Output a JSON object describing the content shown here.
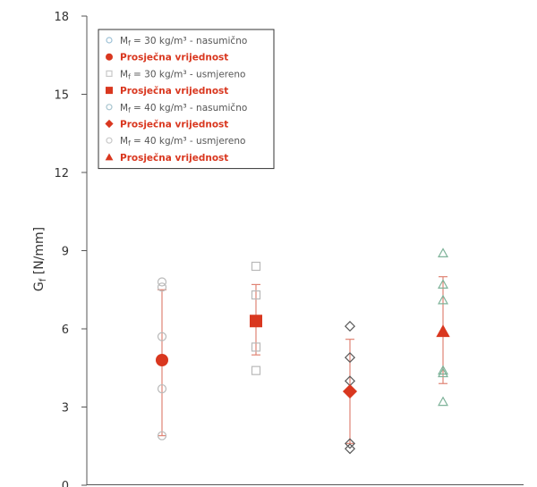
{
  "chart_data": {
    "type": "scatter",
    "title": "",
    "xlabel": "",
    "ylabel": "G",
    "ylabel_sub": "f",
    "ylabel_unit": " [N/mm]",
    "ylim": [
      0,
      18
    ],
    "yticks": [
      0,
      3,
      6,
      9,
      12,
      15,
      18
    ],
    "grid": false,
    "legend_position": "top-left",
    "groups": [
      {
        "x": 1,
        "marker": "circle",
        "raw": [
          7.8,
          7.6,
          5.7,
          3.7,
          1.9
        ],
        "mean": 4.8,
        "err_low": 1.9,
        "err_high": 7.5,
        "raw_color": "#b9b9b9",
        "mean_color": "#d9371f"
      },
      {
        "x": 2,
        "marker": "square",
        "raw": [
          8.4,
          7.3,
          5.3,
          4.4
        ],
        "mean": 6.3,
        "err_low": 5.0,
        "err_high": 7.7,
        "raw_color": "#b9b9b9",
        "mean_color": "#d9371f"
      },
      {
        "x": 3,
        "marker": "diamond",
        "raw": [
          6.1,
          4.9,
          4.0,
          1.6,
          1.4
        ],
        "mean": 3.6,
        "err_low": 1.6,
        "err_high": 5.6,
        "raw_color": "#5a5a5a",
        "mean_color": "#d9371f"
      },
      {
        "x": 4,
        "marker": "triangle",
        "raw": [
          8.9,
          7.7,
          7.1,
          4.4,
          4.3,
          3.2
        ],
        "mean": 5.9,
        "err_low": 3.9,
        "err_high": 8.0,
        "raw_color": "#7fb39a",
        "mean_color": "#d9371f"
      }
    ],
    "legend": [
      {
        "marker": "circle",
        "style": "raw",
        "color": "#9fc2d7",
        "pre": "M",
        "sub": "f",
        "post": " = 30 kg/m³ - nasumično"
      },
      {
        "marker": "circle",
        "style": "mean",
        "color": "#d9371f",
        "text": "Prosječna vrijednost"
      },
      {
        "marker": "square",
        "style": "raw",
        "color": "#c9c9c9",
        "pre": "M",
        "sub": "f",
        "post": " = 30 kg/m³ - usmjereno"
      },
      {
        "marker": "square",
        "style": "mean",
        "color": "#d9371f",
        "text": "Prosječna vrijednost"
      },
      {
        "marker": "circle",
        "style": "raw",
        "color": "#a8c5cf",
        "pre": "M",
        "sub": "f",
        "post": " = 40 kg/m³ - nasumično"
      },
      {
        "marker": "diamond",
        "style": "mean",
        "color": "#d9371f",
        "text": "Prosječna vrijednost"
      },
      {
        "marker": "circle",
        "style": "raw",
        "color": "#c9c9c9",
        "pre": "M",
        "sub": "f",
        "post": " = 40 kg/m³ - usmjereno"
      },
      {
        "marker": "triangle",
        "style": "mean",
        "color": "#d9371f",
        "text": "Prosječna vrijednost"
      }
    ],
    "colors": {
      "axis": "#555555",
      "error_bar": "#e08474",
      "mean": "#d9371f"
    }
  }
}
